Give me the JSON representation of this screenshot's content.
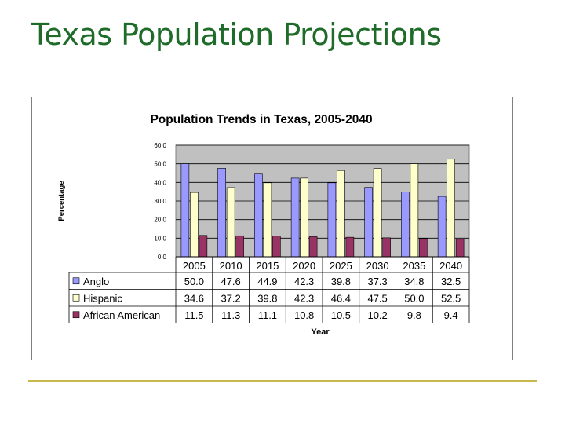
{
  "slide": {
    "title": "Texas Population Projections"
  },
  "colors": {
    "title": "#1e6b2a",
    "plot_bg": "#c0c0c0",
    "footer_rule": "#c9b94a"
  },
  "chart_data": {
    "type": "bar",
    "title": "Population Trends in Texas, 2005-2040",
    "xlabel": "Year",
    "ylabel": "Percentage",
    "ylim": [
      0,
      60
    ],
    "yticks": [
      "0.0",
      "10.0",
      "20.0",
      "30.0",
      "40.0",
      "50.0",
      "60.0"
    ],
    "grid": true,
    "categories": [
      "2005",
      "2010",
      "2015",
      "2020",
      "2025",
      "2030",
      "2035",
      "2040"
    ],
    "series": [
      {
        "name": "Anglo",
        "color": "#9999ff",
        "values": [
          50.0,
          47.6,
          44.9,
          42.3,
          39.8,
          37.3,
          34.8,
          32.5
        ],
        "labels": [
          "50.0",
          "47.6",
          "44.9",
          "42.3",
          "39.8",
          "37.3",
          "34.8",
          "32.5"
        ]
      },
      {
        "name": "Hispanic",
        "color": "#ffffcc",
        "values": [
          34.6,
          37.2,
          39.8,
          42.3,
          46.4,
          47.5,
          50.0,
          52.5
        ],
        "labels": [
          "34.6",
          "37.2",
          "39.8",
          "42.3",
          "46.4",
          "47.5",
          "50.0",
          "52.5"
        ]
      },
      {
        "name": "African American",
        "color": "#993366",
        "values": [
          11.5,
          11.3,
          11.1,
          10.8,
          10.5,
          10.2,
          9.8,
          9.4
        ],
        "labels": [
          "11.5",
          "11.3",
          "11.1",
          "10.8",
          "10.5",
          "10.2",
          "9.8",
          "9.4"
        ]
      }
    ],
    "legend": "data-table"
  }
}
